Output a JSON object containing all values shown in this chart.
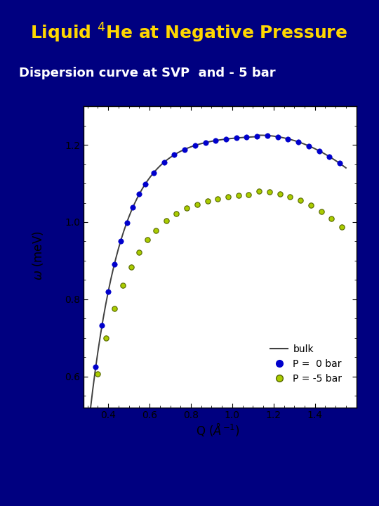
{
  "title": "Liquid $^4$He at Negative Pressure",
  "subtitle": "Dispersion curve at SVP  and - 5 bar",
  "bg_color": "#000080",
  "title_color": "#FFD700",
  "subtitle_color": "#FFFFFF",
  "divider_color": "#FFD700",
  "plot_bg_color": "#00E5FF",
  "inner_plot_bg": "#FFFFFF",
  "xlabel": "Q ($\\AA^{-1}$)",
  "ylabel": "$\\omega$ (meV)",
  "xlim": [
    0.28,
    1.6
  ],
  "ylim": [
    0.52,
    1.3
  ],
  "xticks": [
    0.4,
    0.6,
    0.8,
    1.0,
    1.2,
    1.4
  ],
  "yticks": [
    0.6,
    0.8,
    1.0,
    1.2
  ],
  "bulk_color": "#404040",
  "svp_color": "#0000CC",
  "neg5_color": "#AACC00",
  "neg5_edge": "#556600"
}
